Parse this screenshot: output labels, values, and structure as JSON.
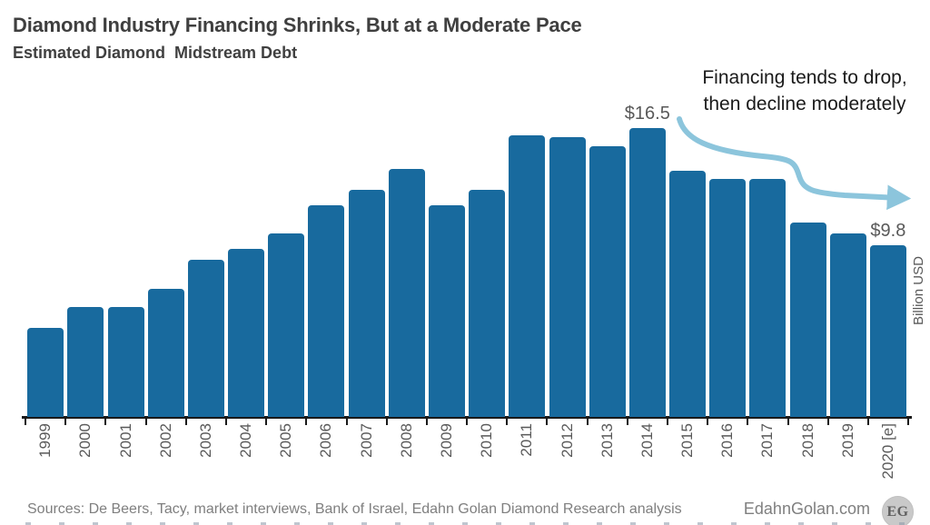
{
  "title": "Diamond Industry Financing Shrinks, But at a Moderate Pace",
  "subtitle": "Estimated Diamond  Midstream Debt",
  "annotation": {
    "line1": "Financing tends to drop,",
    "line2": "then decline moderately"
  },
  "y_axis_label": "Billion USD",
  "value_labels": [
    {
      "label": "$16.5",
      "index": 15
    },
    {
      "label": "$9.8",
      "index": 21
    }
  ],
  "footer": {
    "sources": "Sources: De Beers, Tacy, market interviews, Bank of Israel, Edahn Golan Diamond Research analysis",
    "site": "EdahnGolan.com",
    "logo_text": "EG"
  },
  "colors": {
    "bar": "#186a9e",
    "arrow": "#8cc5dc",
    "title_text": "#3f3f3f",
    "label_gray": "#595959",
    "footer_gray": "#7f7f7f",
    "axis": "#1a1a1a"
  },
  "chart_data": {
    "type": "bar",
    "title": "Diamond Industry Financing Shrinks, But at a Moderate Pace",
    "subtitle": "Estimated Diamond Midstream Debt",
    "categories": [
      "1999",
      "2000",
      "2001",
      "2002",
      "2003",
      "2004",
      "2005",
      "2006",
      "2007",
      "2008",
      "2009",
      "2010",
      "2011",
      "2012",
      "2013",
      "2014",
      "2015",
      "2016",
      "2017",
      "2018",
      "2019",
      "2020 [e]"
    ],
    "values": [
      5.1,
      6.3,
      6.3,
      7.3,
      9.0,
      9.6,
      10.5,
      12.1,
      13.0,
      14.2,
      12.1,
      13.0,
      16.1,
      16.0,
      15.5,
      16.5,
      14.1,
      13.6,
      13.6,
      11.1,
      10.5,
      9.8
    ],
    "data_labels": {
      "2014": "$16.5",
      "2020 [e]": "$9.8"
    },
    "xlabel": "",
    "ylabel": "Billion USD",
    "ylim": [
      0,
      18.6
    ],
    "grid": false,
    "legend": "none",
    "annotation": "Financing tends to drop, then decline moderately"
  }
}
